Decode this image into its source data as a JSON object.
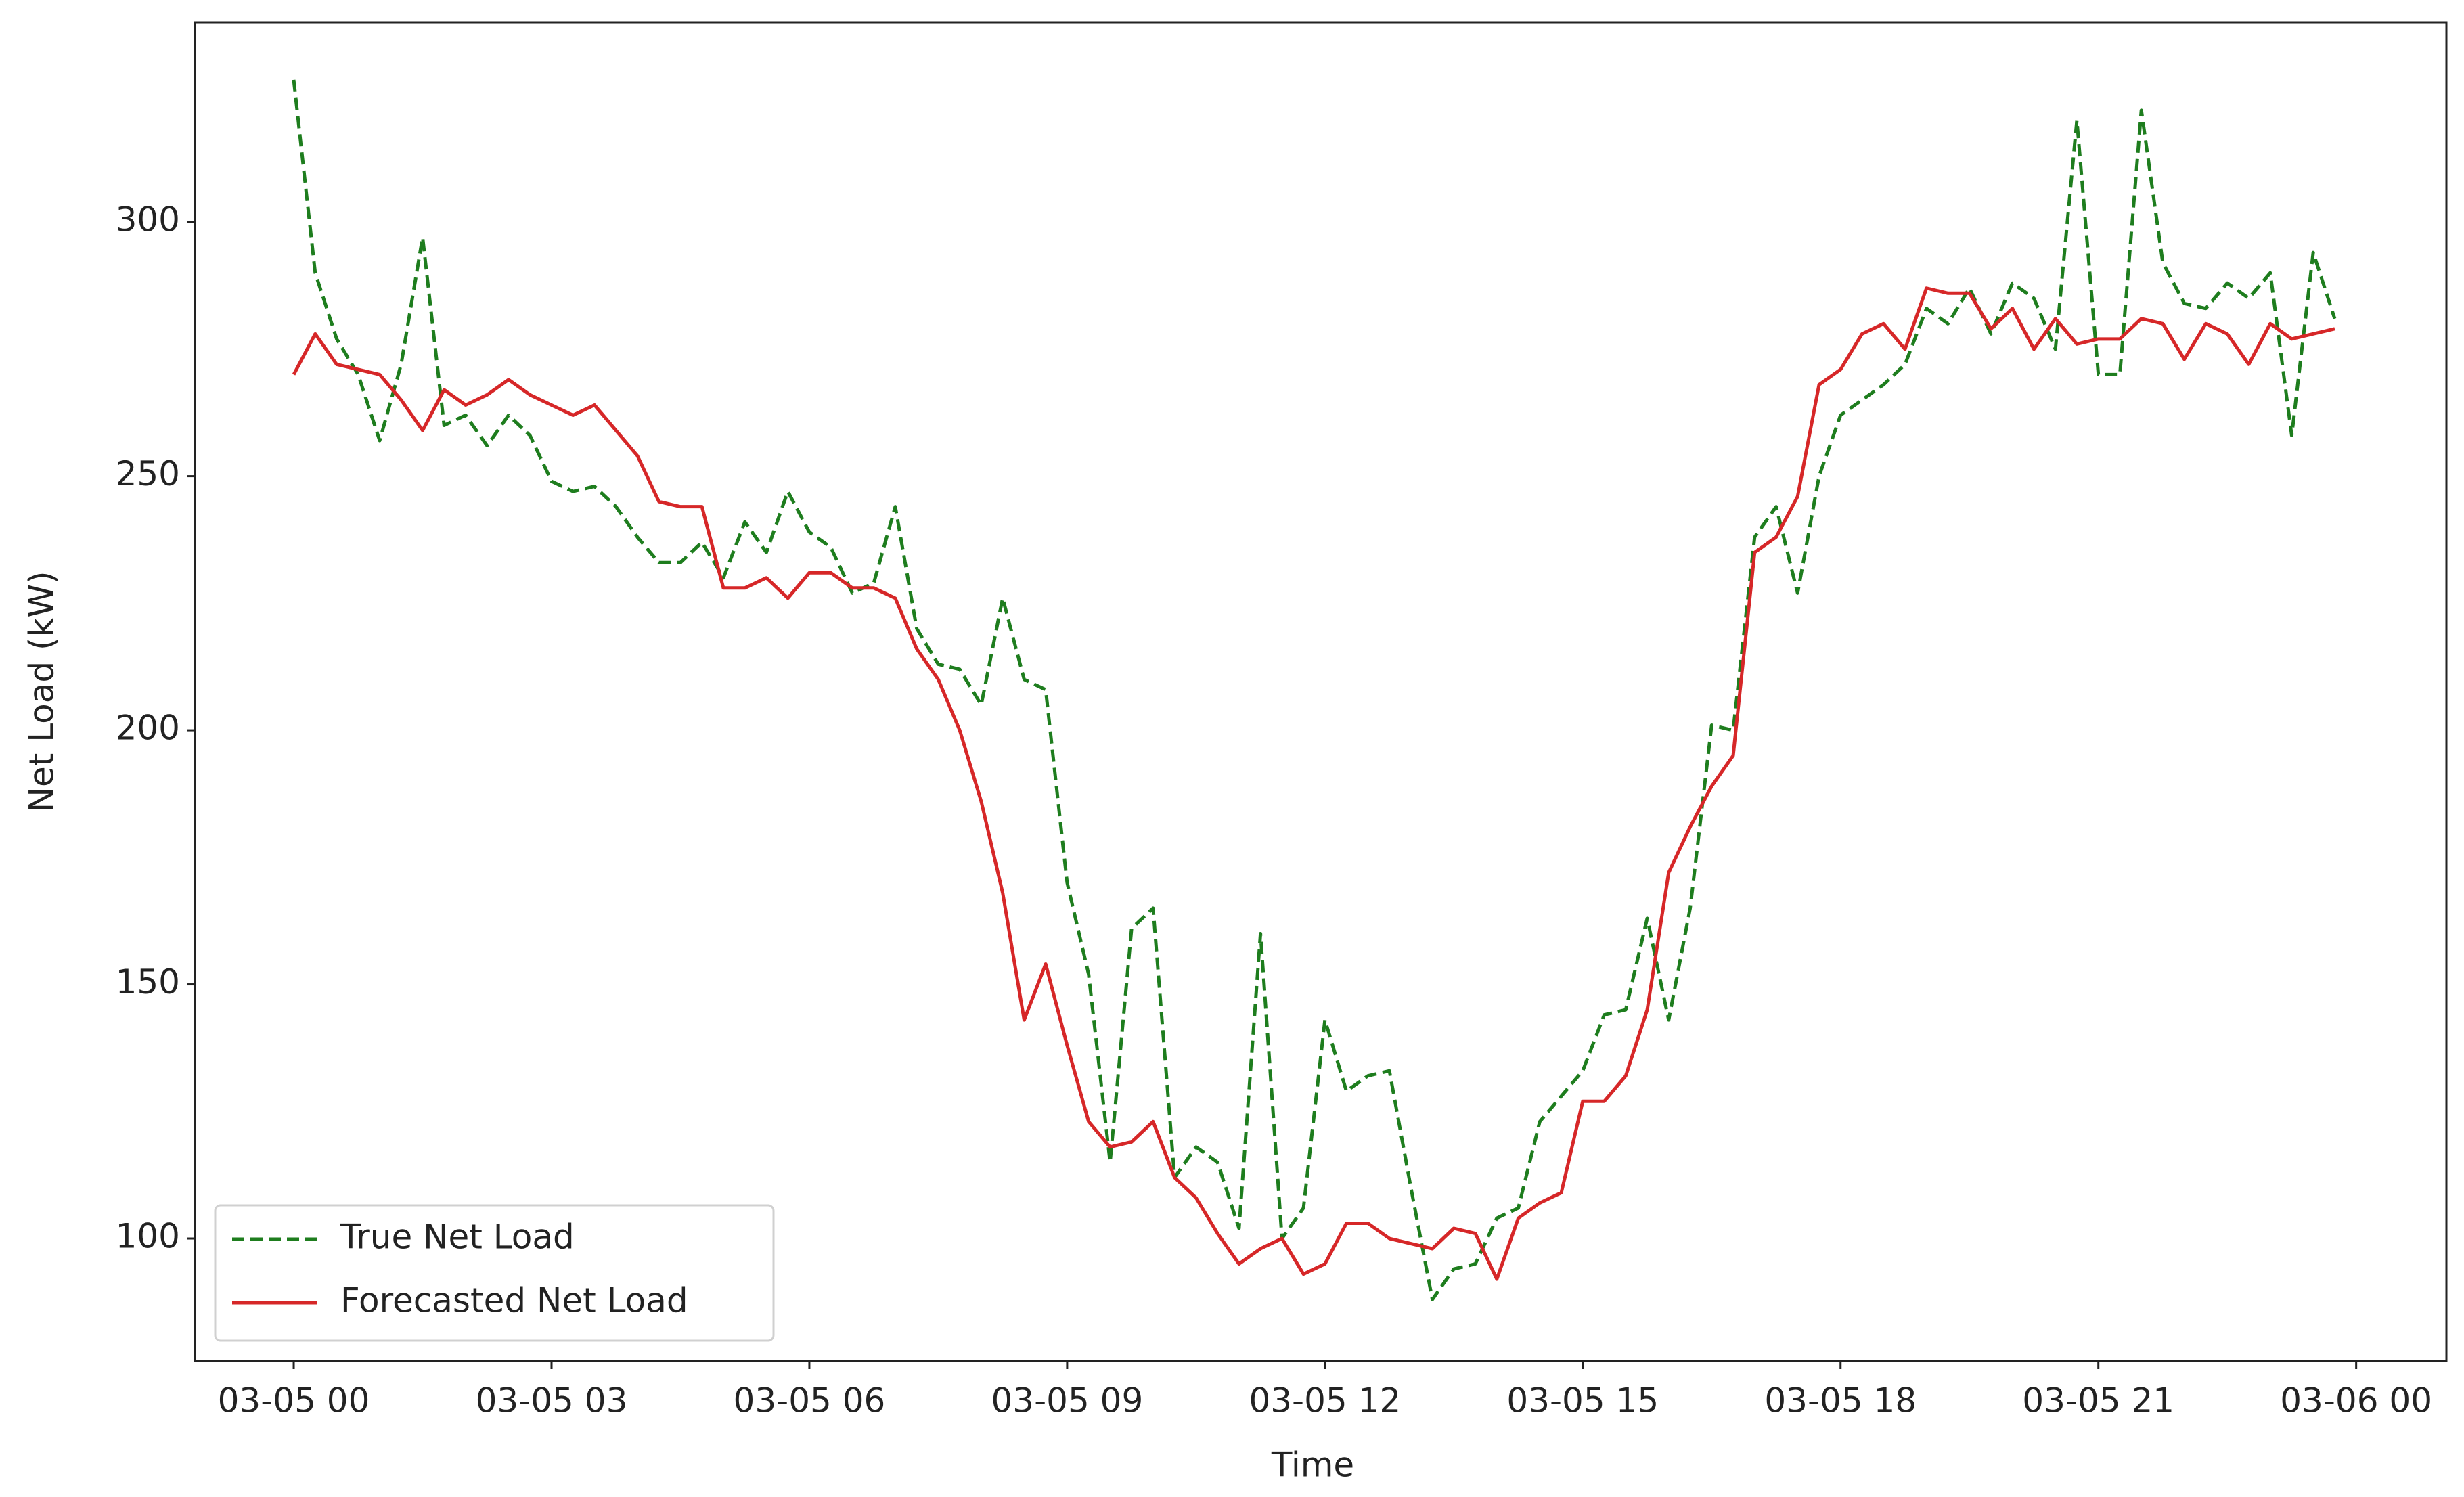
{
  "chart_data": {
    "type": "line",
    "x_label": "Time",
    "y_label": "Net Load (kW)",
    "x": [
      0,
      0.25,
      0.5,
      0.75,
      1,
      1.25,
      1.5,
      1.75,
      2,
      2.25,
      2.5,
      2.75,
      3,
      3.25,
      3.5,
      3.75,
      4,
      4.25,
      4.5,
      4.75,
      5,
      5.25,
      5.5,
      5.75,
      6,
      6.25,
      6.5,
      6.75,
      7,
      7.25,
      7.5,
      7.75,
      8,
      8.25,
      8.5,
      8.75,
      9,
      9.25,
      9.5,
      9.75,
      10,
      10.25,
      10.5,
      10.75,
      11,
      11.25,
      11.5,
      11.75,
      12,
      12.25,
      12.5,
      12.75,
      13,
      13.25,
      13.5,
      13.75,
      14,
      14.25,
      14.5,
      14.75,
      15,
      15.25,
      15.5,
      15.75,
      16,
      16.25,
      16.5,
      16.75,
      17,
      17.25,
      17.5,
      17.75,
      18,
      18.25,
      18.5,
      18.75,
      19,
      19.25,
      19.5,
      19.75,
      20,
      20.25,
      20.5,
      20.75,
      21,
      21.25,
      21.5,
      21.75,
      22,
      22.25,
      22.5,
      22.75,
      23,
      23.25,
      23.5,
      23.75
    ],
    "series": [
      {
        "name": "True Net Load",
        "color": "#1e7d1e",
        "dashed": true,
        "values": [
          328,
          290,
          277,
          270,
          257,
          272,
          297,
          260,
          262,
          256,
          262,
          258,
          249,
          247,
          248,
          244,
          238,
          233,
          233,
          237,
          230,
          241,
          235,
          247,
          239,
          236,
          227,
          229,
          244,
          220,
          213,
          212,
          205,
          226,
          210,
          208,
          170,
          152,
          115,
          161,
          165,
          112,
          118,
          115,
          102,
          160,
          100,
          106,
          143,
          129,
          132,
          133,
          110,
          88,
          94,
          95,
          104,
          106,
          123,
          128,
          133,
          144,
          145,
          163,
          143,
          165,
          201,
          200,
          238,
          244,
          227,
          250,
          262,
          265,
          268,
          272,
          283,
          280,
          287,
          278,
          288,
          285,
          275,
          320,
          270,
          270,
          322,
          292,
          284,
          283,
          288,
          285,
          290,
          258,
          294,
          281
        ]
      },
      {
        "name": "Forecasted Net Load",
        "color": "#d62728",
        "dashed": false,
        "values": [
          270,
          278,
          272,
          271,
          270,
          265,
          259,
          267,
          264,
          266,
          269,
          266,
          264,
          262,
          264,
          259,
          254,
          245,
          244,
          244,
          228,
          228,
          230,
          226,
          231,
          231,
          228,
          228,
          226,
          216,
          210,
          200,
          186,
          168,
          143,
          154,
          138,
          123,
          118,
          119,
          123,
          112,
          108,
          101,
          95,
          98,
          100,
          93,
          95,
          103,
          103,
          100,
          99,
          98,
          102,
          101,
          92,
          104,
          107,
          109,
          127,
          127,
          132,
          145,
          172,
          181,
          189,
          195,
          235,
          238,
          246,
          268,
          271,
          278,
          280,
          275,
          287,
          286,
          286,
          279,
          283,
          275,
          281,
          276,
          277,
          277,
          281,
          280,
          273,
          280,
          278,
          272,
          280,
          277,
          278,
          279
        ]
      }
    ],
    "xlim": [
      -1.15,
      25.05
    ],
    "ylim": [
      75.9,
      339.3
    ],
    "xticks": [
      {
        "value": 0,
        "label": "03-05 00"
      },
      {
        "value": 3,
        "label": "03-05 03"
      },
      {
        "value": 6,
        "label": "03-05 06"
      },
      {
        "value": 9,
        "label": "03-05 09"
      },
      {
        "value": 12,
        "label": "03-05 12"
      },
      {
        "value": 15,
        "label": "03-05 15"
      },
      {
        "value": 18,
        "label": "03-05 18"
      },
      {
        "value": 21,
        "label": "03-05 21"
      },
      {
        "value": 24,
        "label": "03-06 00"
      }
    ],
    "yticks": [
      100,
      150,
      200,
      250,
      300
    ],
    "legend": "lower left",
    "grid": false
  }
}
